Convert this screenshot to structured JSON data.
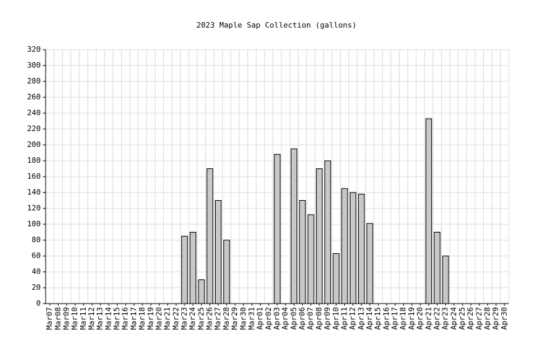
{
  "chart_data": {
    "type": "bar",
    "title": "2023 Maple Sap Collection (gallons)",
    "categories": [
      "Mar07",
      "Mar08",
      "Mar09",
      "Mar10",
      "Mar11",
      "Mar12",
      "Mar13",
      "Mar14",
      "Mar15",
      "Mar16",
      "Mar17",
      "Mar18",
      "Mar19",
      "Mar20",
      "Mar21",
      "Mar22",
      "Mar23",
      "Mar24",
      "Mar25",
      "Mar26",
      "Mar27",
      "Mar28",
      "Mar29",
      "Mar30",
      "Mar31",
      "Apr01",
      "Apr02",
      "Apr03",
      "Apr04",
      "Apr05",
      "Apr06",
      "Apr07",
      "Apr08",
      "Apr09",
      "Apr10",
      "Apr11",
      "Apr12",
      "Apr13",
      "Apr14",
      "Apr15",
      "Apr16",
      "Apr17",
      "Apr18",
      "Apr19",
      "Apr20",
      "Apr21",
      "Apr22",
      "Apr23",
      "Apr24",
      "Apr25",
      "Apr26",
      "Apr27",
      "Apr28",
      "Apr29",
      "Apr30"
    ],
    "values": [
      0,
      0,
      0,
      0,
      0,
      0,
      0,
      0,
      0,
      0,
      0,
      0,
      0,
      0,
      0,
      0,
      85,
      90,
      30,
      170,
      130,
      80,
      0,
      0,
      0,
      0,
      0,
      188,
      0,
      195,
      130,
      112,
      170,
      180,
      63,
      145,
      140,
      138,
      101,
      0,
      0,
      0,
      0,
      0,
      0,
      233,
      90,
      60,
      0,
      0,
      0,
      0,
      0,
      0,
      0
    ],
    "color": "#c8c8c8",
    "ylim": [
      0,
      320
    ],
    "yticks": [
      0,
      20,
      40,
      60,
      80,
      100,
      120,
      140,
      160,
      180,
      200,
      220,
      240,
      260,
      280,
      300,
      320
    ],
    "grid": true
  }
}
